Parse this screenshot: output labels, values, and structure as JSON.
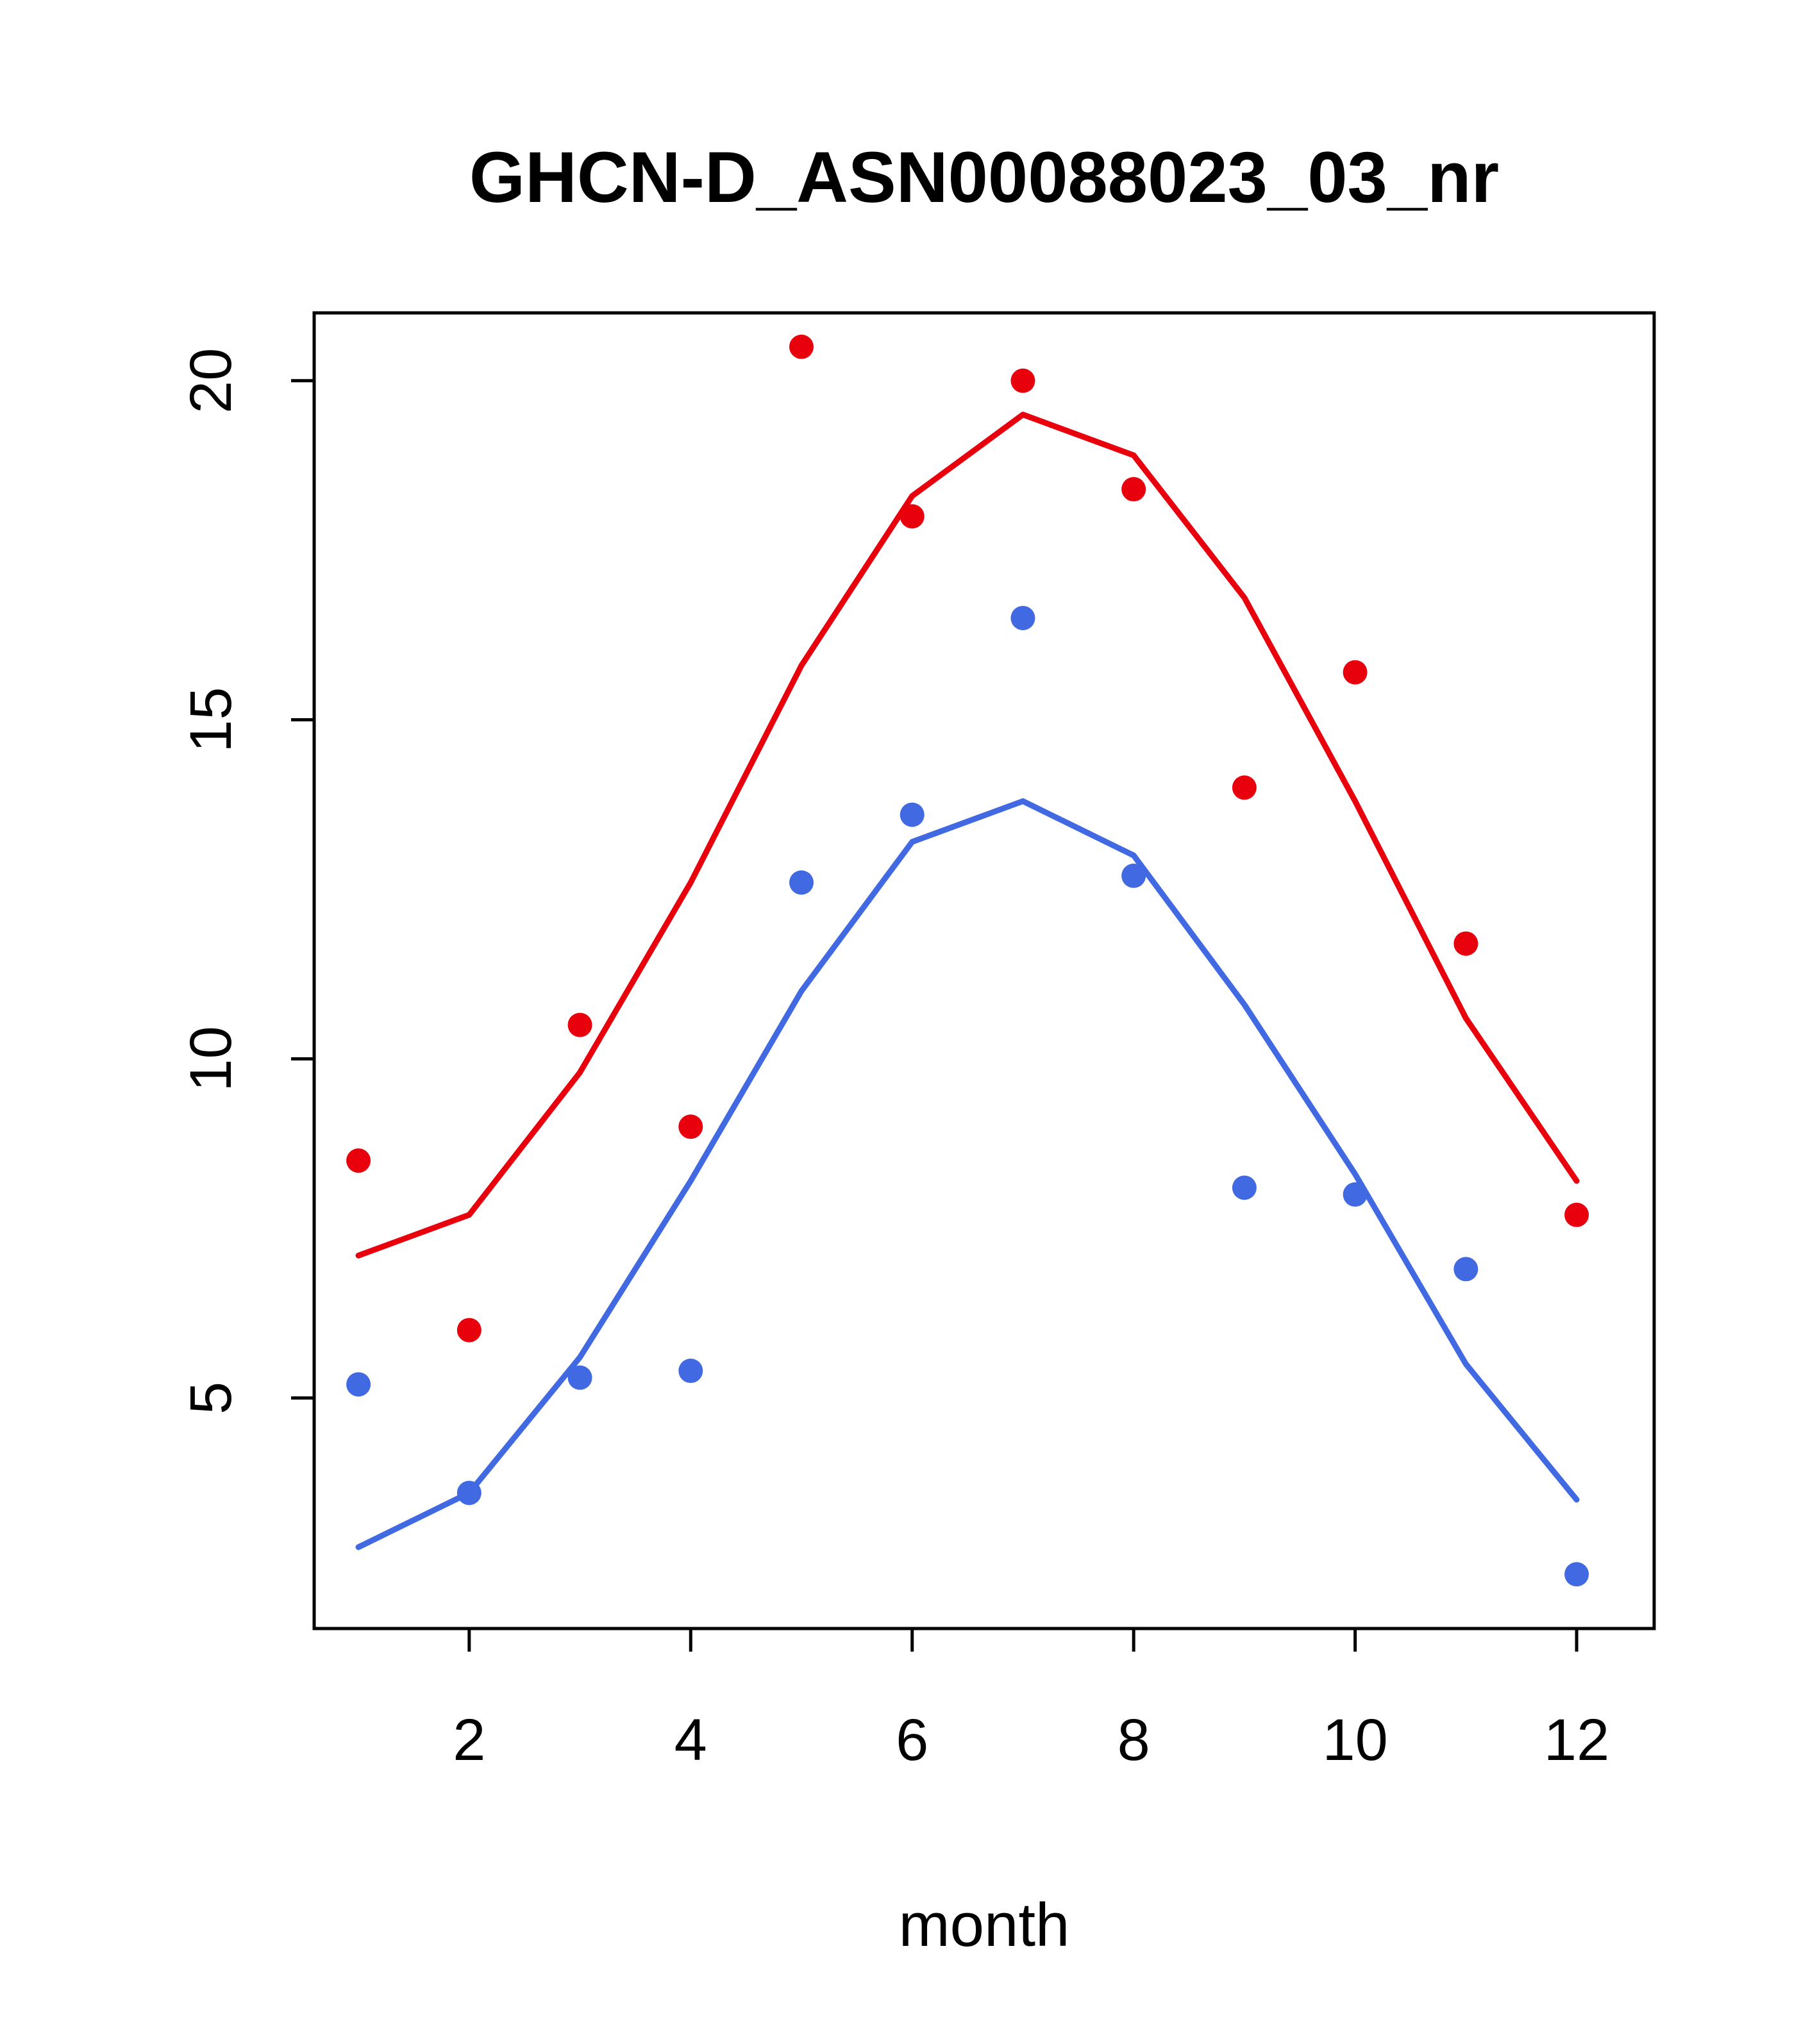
{
  "chart_data": {
    "type": "scatter",
    "title": "GHCN-D_ASN00088023_03_nr",
    "xlabel": "month",
    "ylabel": "",
    "x": [
      1,
      2,
      3,
      4,
      5,
      6,
      7,
      8,
      9,
      10,
      11,
      12
    ],
    "xticks": [
      2,
      4,
      6,
      8,
      10,
      12
    ],
    "yticks": [
      5,
      10,
      15,
      20
    ],
    "xlim": [
      0.6,
      12.7
    ],
    "ylim": [
      1.6,
      21.0
    ],
    "grid": false,
    "legend": "none",
    "colors": {
      "red": "#e8000d",
      "blue": "#4169e1"
    },
    "series": [
      {
        "name": "red-line-fit",
        "kind": "line",
        "color": "#e8000d",
        "values": [
          7.1,
          7.7,
          9.8,
          12.6,
          15.8,
          18.3,
          19.5,
          18.9,
          16.8,
          13.8,
          10.6,
          8.2
        ]
      },
      {
        "name": "blue-line-fit",
        "kind": "line",
        "color": "#4169e1",
        "values": [
          2.8,
          3.6,
          5.6,
          8.2,
          11.0,
          13.2,
          13.8,
          13.0,
          10.8,
          8.3,
          5.5,
          3.5
        ]
      },
      {
        "name": "red-points",
        "kind": "scatter",
        "color": "#e8000d",
        "values": [
          8.5,
          6.0,
          10.5,
          9.0,
          20.5,
          18.0,
          20.0,
          18.4,
          14.0,
          15.7,
          11.7,
          7.7
        ]
      },
      {
        "name": "blue-points",
        "kind": "scatter",
        "color": "#4169e1",
        "values": [
          5.2,
          3.6,
          5.3,
          5.4,
          12.6,
          13.6,
          16.5,
          12.7,
          8.1,
          8.0,
          6.9,
          2.4
        ]
      }
    ]
  },
  "layout_text": {
    "title": "GHCN-D_ASN00088023_03_nr",
    "xlabel": "month"
  }
}
